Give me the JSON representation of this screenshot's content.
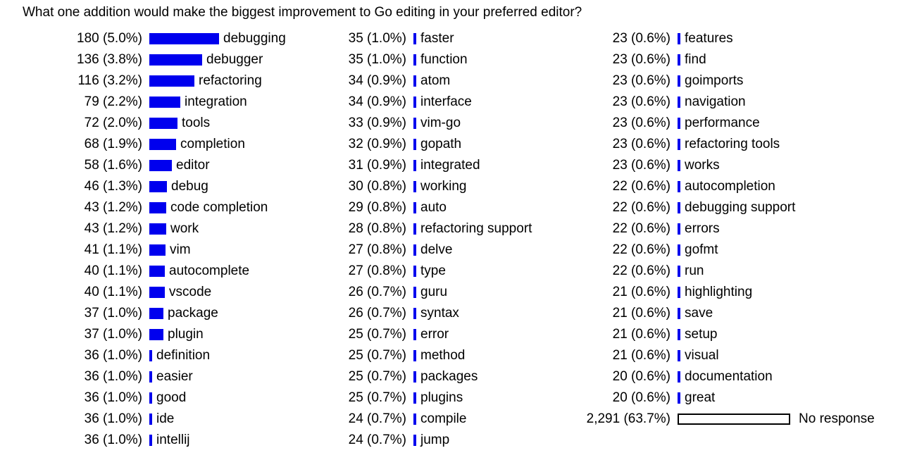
{
  "chart_data": {
    "type": "bar",
    "title": "What one addition would make the biggest improvement to Go editing in your preferred editor?",
    "max_value": 2291,
    "colors": {
      "bar_fill": "#0000ee",
      "no_response_border": "#000000"
    },
    "columns": [
      [
        {
          "label": "debugging",
          "value": 180,
          "display": "180 (5.0%)"
        },
        {
          "label": "debugger",
          "value": 136,
          "display": "136 (3.8%)"
        },
        {
          "label": "refactoring",
          "value": 116,
          "display": "116 (3.2%)"
        },
        {
          "label": "integration",
          "value": 79,
          "display": "79 (2.2%)"
        },
        {
          "label": "tools",
          "value": 72,
          "display": "72 (2.0%)"
        },
        {
          "label": "completion",
          "value": 68,
          "display": "68 (1.9%)"
        },
        {
          "label": "editor",
          "value": 58,
          "display": "58 (1.6%)"
        },
        {
          "label": "debug",
          "value": 46,
          "display": "46 (1.3%)"
        },
        {
          "label": "code completion",
          "value": 43,
          "display": "43 (1.2%)"
        },
        {
          "label": "work",
          "value": 43,
          "display": "43 (1.2%)"
        },
        {
          "label": "vim",
          "value": 41,
          "display": "41 (1.1%)"
        },
        {
          "label": "autocomplete",
          "value": 40,
          "display": "40 (1.1%)"
        },
        {
          "label": "vscode",
          "value": 40,
          "display": "40 (1.1%)"
        },
        {
          "label": "package",
          "value": 37,
          "display": "37 (1.0%)"
        },
        {
          "label": "plugin",
          "value": 37,
          "display": "37 (1.0%)"
        },
        {
          "label": "definition",
          "value": 36,
          "display": "36 (1.0%)"
        },
        {
          "label": "easier",
          "value": 36,
          "display": "36 (1.0%)"
        },
        {
          "label": "good",
          "value": 36,
          "display": "36 (1.0%)"
        },
        {
          "label": "ide",
          "value": 36,
          "display": "36 (1.0%)"
        },
        {
          "label": "intellij",
          "value": 36,
          "display": "36 (1.0%)"
        }
      ],
      [
        {
          "label": "faster",
          "value": 35,
          "display": "35 (1.0%)"
        },
        {
          "label": "function",
          "value": 35,
          "display": "35 (1.0%)"
        },
        {
          "label": "atom",
          "value": 34,
          "display": "34 (0.9%)"
        },
        {
          "label": "interface",
          "value": 34,
          "display": "34 (0.9%)"
        },
        {
          "label": "vim-go",
          "value": 33,
          "display": "33 (0.9%)"
        },
        {
          "label": "gopath",
          "value": 32,
          "display": "32 (0.9%)"
        },
        {
          "label": "integrated",
          "value": 31,
          "display": "31 (0.9%)"
        },
        {
          "label": "working",
          "value": 30,
          "display": "30 (0.8%)"
        },
        {
          "label": "auto",
          "value": 29,
          "display": "29 (0.8%)"
        },
        {
          "label": "refactoring support",
          "value": 28,
          "display": "28 (0.8%)"
        },
        {
          "label": "delve",
          "value": 27,
          "display": "27 (0.8%)"
        },
        {
          "label": "type",
          "value": 27,
          "display": "27 (0.8%)"
        },
        {
          "label": "guru",
          "value": 26,
          "display": "26 (0.7%)"
        },
        {
          "label": "syntax",
          "value": 26,
          "display": "26 (0.7%)"
        },
        {
          "label": "error",
          "value": 25,
          "display": "25 (0.7%)"
        },
        {
          "label": "method",
          "value": 25,
          "display": "25 (0.7%)"
        },
        {
          "label": "packages",
          "value": 25,
          "display": "25 (0.7%)"
        },
        {
          "label": "plugins",
          "value": 25,
          "display": "25 (0.7%)"
        },
        {
          "label": "compile",
          "value": 24,
          "display": "24 (0.7%)"
        },
        {
          "label": "jump",
          "value": 24,
          "display": "24 (0.7%)"
        }
      ],
      [
        {
          "label": "features",
          "value": 23,
          "display": "23 (0.6%)"
        },
        {
          "label": "find",
          "value": 23,
          "display": "23 (0.6%)"
        },
        {
          "label": "goimports",
          "value": 23,
          "display": "23 (0.6%)"
        },
        {
          "label": "navigation",
          "value": 23,
          "display": "23 (0.6%)"
        },
        {
          "label": "performance",
          "value": 23,
          "display": "23 (0.6%)"
        },
        {
          "label": "refactoring tools",
          "value": 23,
          "display": "23 (0.6%)"
        },
        {
          "label": "works",
          "value": 23,
          "display": "23 (0.6%)"
        },
        {
          "label": "autocompletion",
          "value": 22,
          "display": "22 (0.6%)"
        },
        {
          "label": "debugging support",
          "value": 22,
          "display": "22 (0.6%)"
        },
        {
          "label": "errors",
          "value": 22,
          "display": "22 (0.6%)"
        },
        {
          "label": "gofmt",
          "value": 22,
          "display": "22 (0.6%)"
        },
        {
          "label": "run",
          "value": 22,
          "display": "22 (0.6%)"
        },
        {
          "label": "highlighting",
          "value": 21,
          "display": "21 (0.6%)"
        },
        {
          "label": "save",
          "value": 21,
          "display": "21 (0.6%)"
        },
        {
          "label": "setup",
          "value": 21,
          "display": "21 (0.6%)"
        },
        {
          "label": "visual",
          "value": 21,
          "display": "21 (0.6%)"
        },
        {
          "label": "documentation",
          "value": 20,
          "display": "20 (0.6%)"
        },
        {
          "label": "great",
          "value": 20,
          "display": "20 (0.6%)"
        },
        {
          "label": "No response",
          "value": 2291,
          "display": "2,291 (63.7%)",
          "no_response": true
        }
      ]
    ]
  }
}
